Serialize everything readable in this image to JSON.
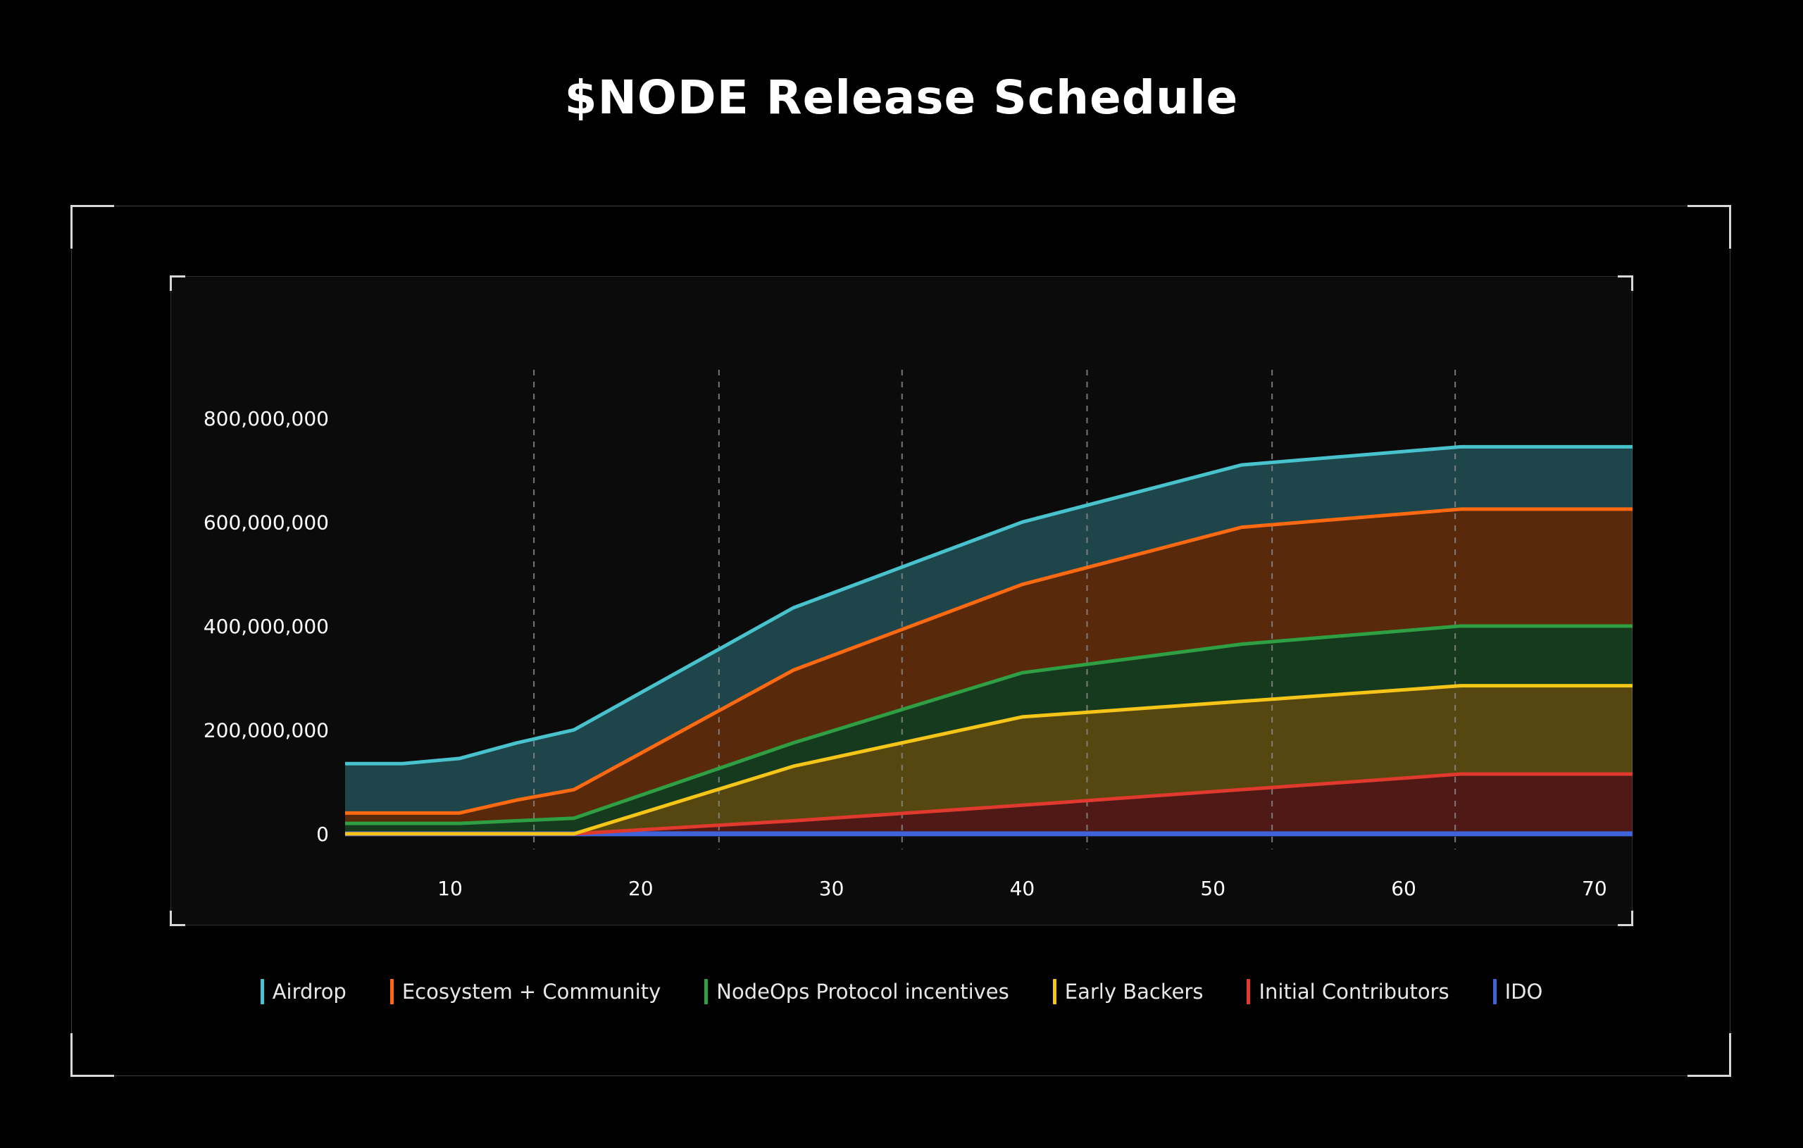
{
  "title": "$NODE Release Schedule",
  "colors": {
    "background": "#000000",
    "plot_background": "#0b0b0b",
    "grid": "#8a8a8a"
  },
  "chart_data": {
    "type": "area",
    "stacked": true,
    "title": "$NODE Release Schedule",
    "xlabel": "",
    "ylabel": "",
    "xlim": [
      4.5,
      72
    ],
    "ylim": [
      -30000000,
      900000000
    ],
    "x_ticks": [
      10,
      20,
      30,
      40,
      50,
      60,
      70
    ],
    "x_tick_labels": [
      "10",
      "20",
      "30",
      "40",
      "50",
      "60",
      "70"
    ],
    "y_ticks": [
      0,
      200000000,
      400000000,
      600000000,
      800000000
    ],
    "y_tick_labels": [
      "0",
      "200,000,000",
      "400,000,000",
      "600,000,000",
      "800,000,000"
    ],
    "dashed_vertical_gridlines_at": [
      14.4,
      24.1,
      33.7,
      43.4,
      53.1,
      62.7
    ],
    "legend_position": "bottom",
    "x": [
      4.5,
      7.5,
      10.5,
      13.5,
      16.5,
      28,
      40,
      51.5,
      63,
      72
    ],
    "series": [
      {
        "name": "IDO",
        "color": "#3f63d8",
        "values": [
          0,
          0,
          0,
          0,
          0,
          0,
          0,
          0,
          0,
          0
        ]
      },
      {
        "name": "Initial Contributors",
        "color": "#e0392e",
        "values": [
          0,
          0,
          0,
          0,
          0,
          25000000,
          55000000,
          85000000,
          115000000,
          115000000
        ]
      },
      {
        "name": "Early Backers",
        "color": "#f5c518",
        "values": [
          0,
          0,
          0,
          0,
          0,
          105000000,
          170000000,
          170000000,
          170000000,
          170000000
        ]
      },
      {
        "name": "NodeOps Protocol incentives",
        "color": "#2ea043",
        "values": [
          20000000,
          20000000,
          20000000,
          25000000,
          30000000,
          45000000,
          85000000,
          110000000,
          115000000,
          115000000
        ]
      },
      {
        "name": "Ecosystem + Community",
        "color": "#ff6a10",
        "values": [
          20000000,
          20000000,
          20000000,
          40000000,
          55000000,
          140000000,
          170000000,
          225000000,
          225000000,
          225000000
        ]
      },
      {
        "name": "Airdrop",
        "color": "#48c2cc",
        "values": [
          95000000,
          95000000,
          105000000,
          110000000,
          115000000,
          120000000,
          120000000,
          120000000,
          120000000,
          120000000
        ]
      }
    ]
  },
  "legend": [
    {
      "label": "Airdrop",
      "color": "#48c2cc"
    },
    {
      "label": "Ecosystem + Community",
      "color": "#ff6a10"
    },
    {
      "label": "NodeOps Protocol incentives",
      "color": "#2ea043"
    },
    {
      "label": "Early Backers",
      "color": "#f5c518"
    },
    {
      "label": "Initial Contributors",
      "color": "#e0392e"
    },
    {
      "label": "IDO",
      "color": "#3f63d8"
    }
  ]
}
